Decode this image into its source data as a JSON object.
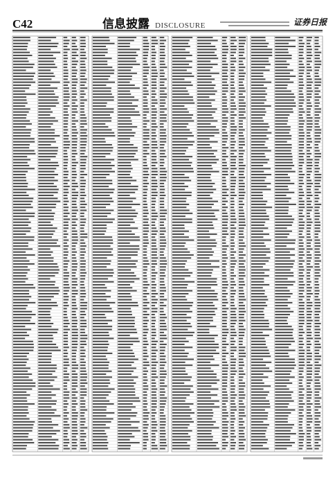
{
  "header": {
    "page": "C42",
    "section_title": "信息披露",
    "section_title_en": "DISCLOSURE",
    "masthead": "证券日报"
  }
}
